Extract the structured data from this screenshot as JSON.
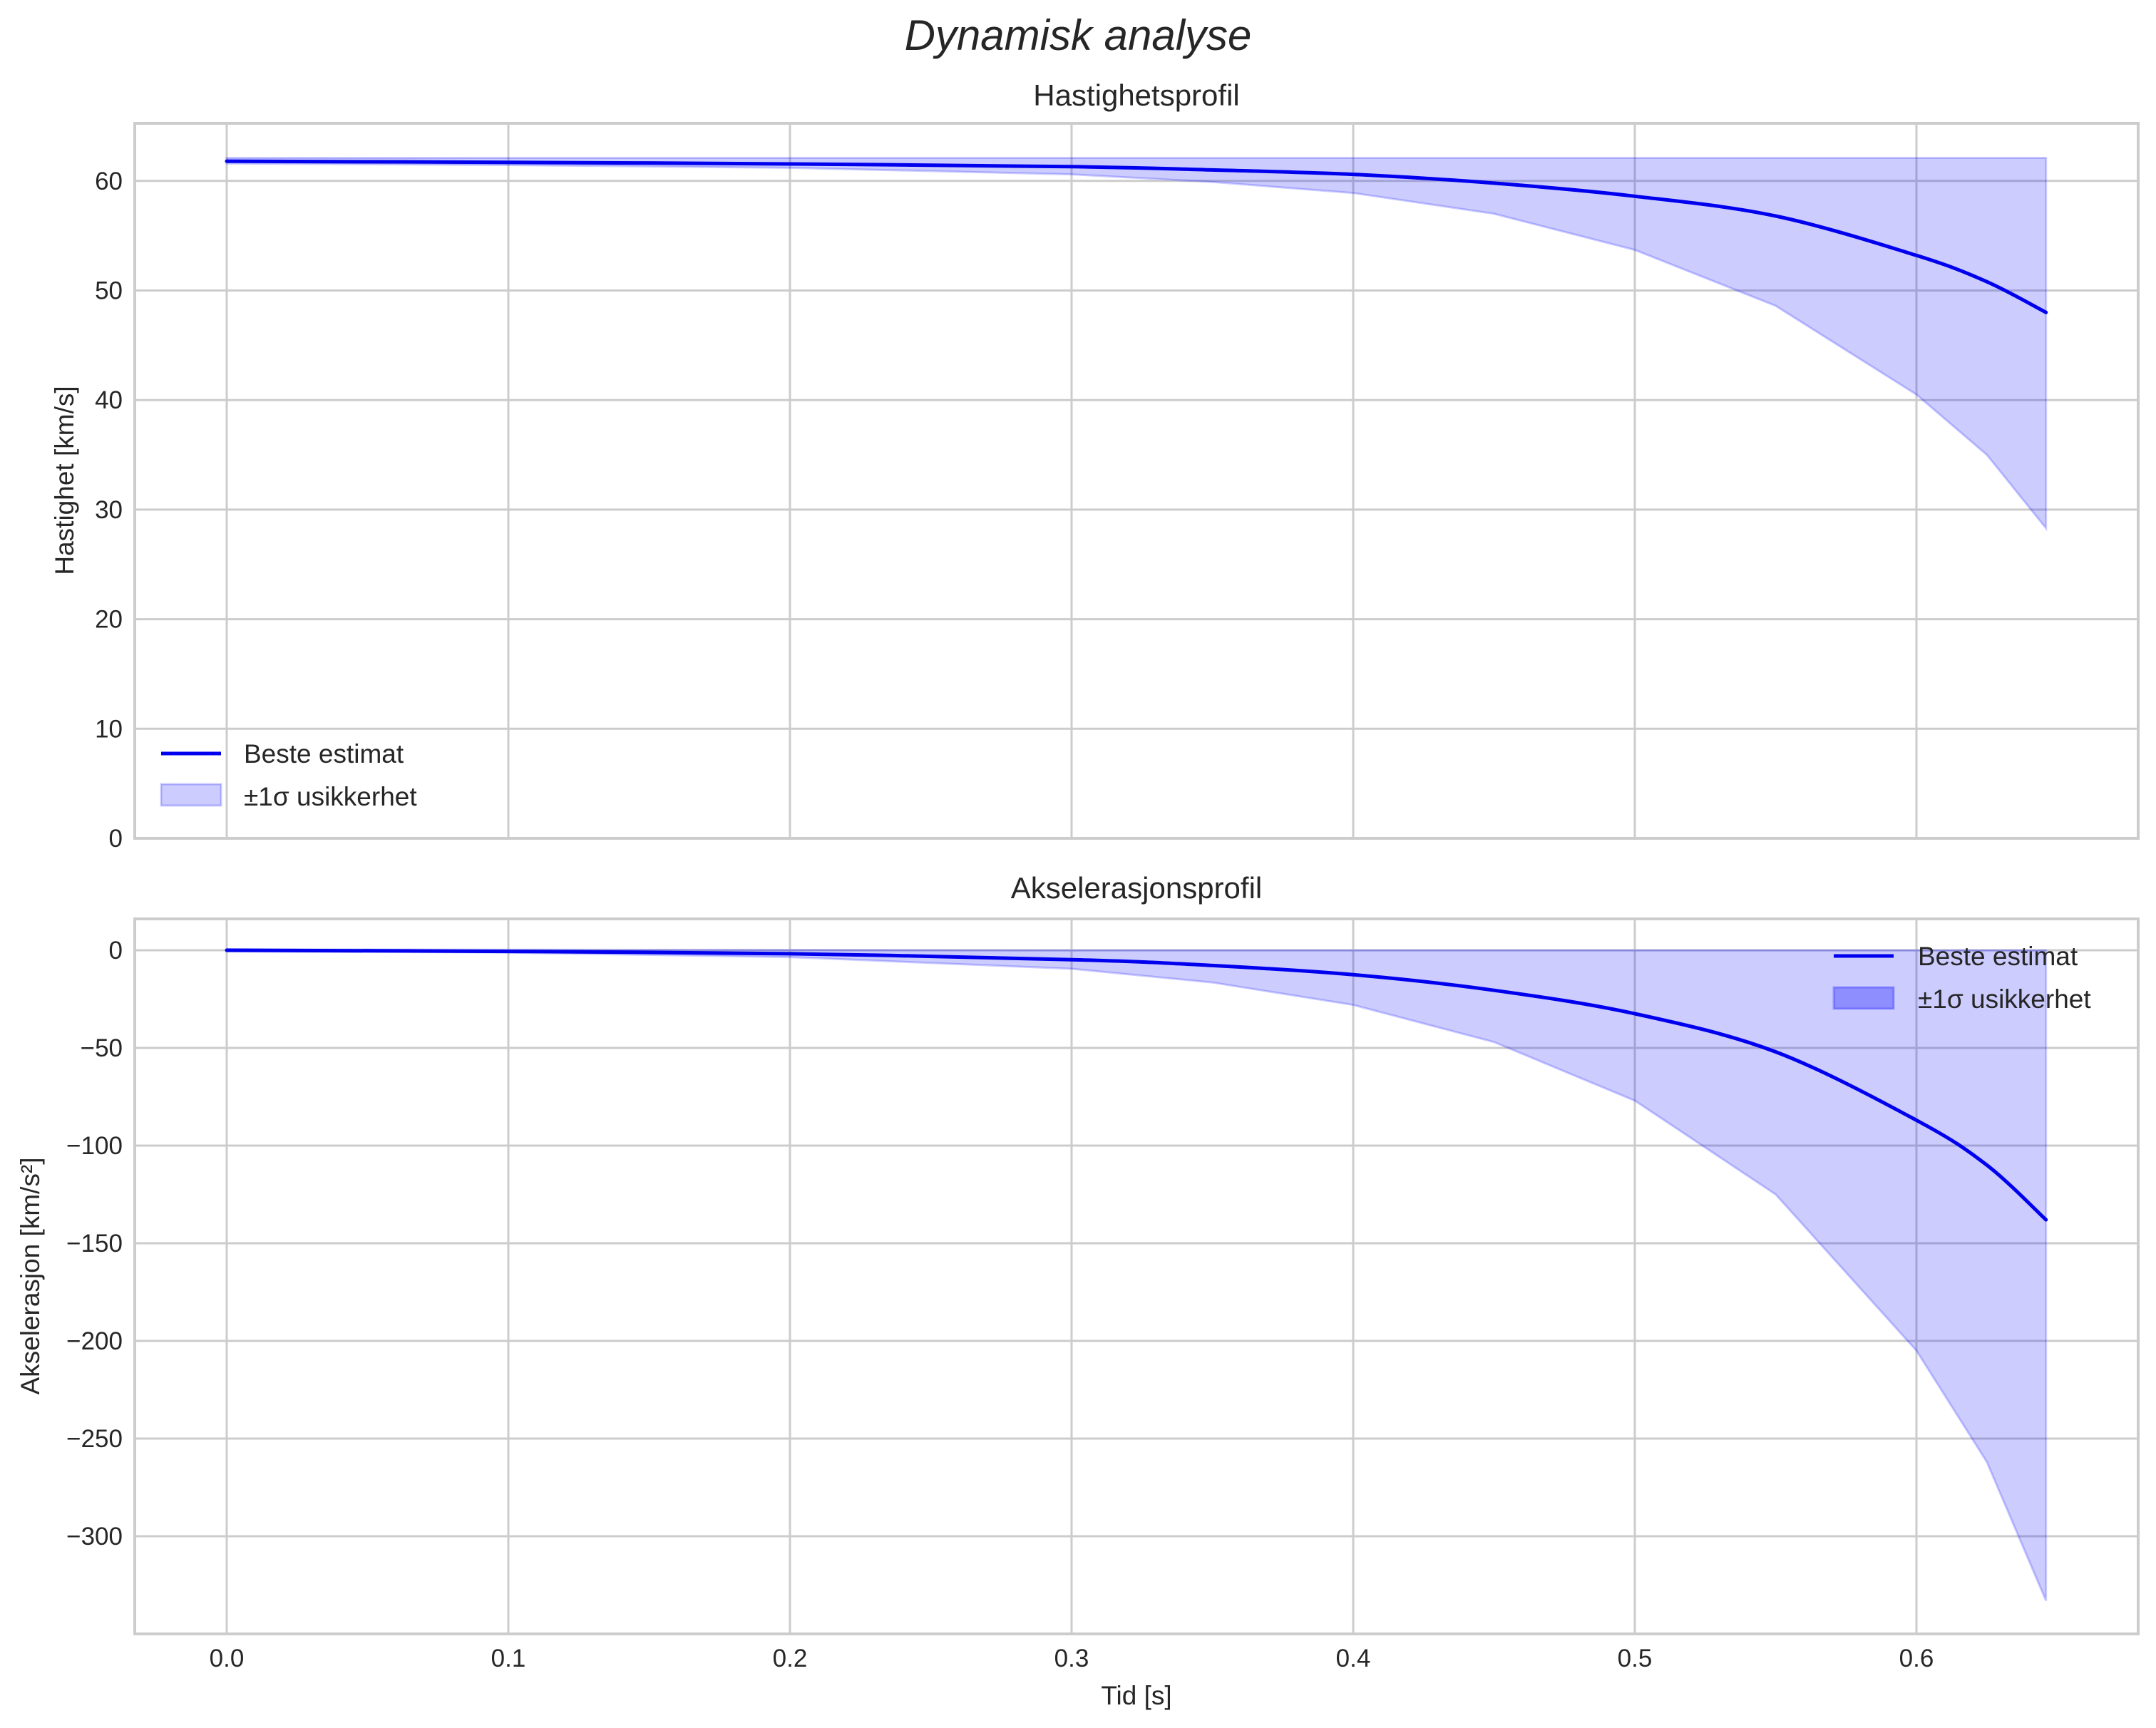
{
  "figure": {
    "suptitle": "Dynamisk analyse",
    "xlabel": "Tid [s]"
  },
  "colors": {
    "line": "#0000ee",
    "band": "#0000ff",
    "grid": "#cccccc",
    "text": "#262626"
  },
  "chart_data": [
    {
      "type": "line",
      "title": "Hastighetsprofil",
      "xlabel": "",
      "ylabel": "Hastighet [km/s]",
      "xlim": [
        -0.033,
        0.678
      ],
      "ylim": [
        0,
        65.4
      ],
      "xticks": [
        "0.0",
        "0.1",
        "0.2",
        "0.3",
        "0.4",
        "0.5",
        "0.6"
      ],
      "yticks": [
        "0",
        "10",
        "20",
        "30",
        "40",
        "50",
        "60"
      ],
      "grid": true,
      "legend_position": "lower left",
      "legend": [
        "Beste estimat",
        "±1σ usikkerhet"
      ],
      "x": [
        0.0,
        0.1,
        0.2,
        0.3,
        0.35,
        0.4,
        0.45,
        0.5,
        0.55,
        0.6,
        0.625,
        0.646
      ],
      "series": [
        {
          "name": "Beste estimat",
          "values": [
            61.8,
            61.7,
            61.55,
            61.3,
            61.0,
            60.6,
            59.8,
            58.6,
            56.8,
            53.2,
            50.8,
            48.0
          ]
        },
        {
          "name": "±1σ lower",
          "values": [
            61.6,
            61.45,
            61.2,
            60.6,
            59.9,
            58.9,
            57.0,
            53.7,
            48.6,
            40.5,
            35.0,
            28.3
          ]
        },
        {
          "name": "±1σ upper",
          "values": [
            62.1,
            62.1,
            62.1,
            62.1,
            62.1,
            62.1,
            62.1,
            62.1,
            62.1,
            62.1,
            62.1,
            62.1
          ]
        }
      ]
    },
    {
      "type": "line",
      "title": "Akselerasjonsprofil",
      "xlabel": "Tid [s]",
      "ylabel": "Akselerasjon [km/s²]",
      "xlim": [
        -0.033,
        0.678
      ],
      "ylim": [
        -350,
        17
      ],
      "xticks": [
        "0.0",
        "0.1",
        "0.2",
        "0.3",
        "0.4",
        "0.5",
        "0.6"
      ],
      "yticks": [
        "0",
        "−50",
        "−100",
        "−150",
        "−200",
        "−250",
        "−300"
      ],
      "grid": true,
      "legend_position": "upper right",
      "legend": [
        "Beste estimat",
        "±1σ usikkerhet"
      ],
      "x": [
        0.0,
        0.1,
        0.2,
        0.3,
        0.35,
        0.4,
        0.45,
        0.5,
        0.55,
        0.6,
        0.625,
        0.646
      ],
      "series": [
        {
          "name": "Beste estimat",
          "values": [
            0.0,
            -0.6,
            -1.8,
            -4.8,
            -7.8,
            -12.5,
            -20.5,
            -32.5,
            -52.0,
            -87.0,
            -110.0,
            -138.0
          ]
        },
        {
          "name": "±1σ lower",
          "values": [
            -0.5,
            -1.2,
            -3.5,
            -9.5,
            -16.5,
            -28.0,
            -47.0,
            -77.0,
            -125.0,
            -205.0,
            -262.0,
            -333.0
          ]
        },
        {
          "name": "±1σ upper",
          "values": [
            0.5,
            0.3,
            0.2,
            0.0,
            0.0,
            0.0,
            0.0,
            0.0,
            0.0,
            0.0,
            0.0,
            0.0
          ]
        }
      ]
    }
  ]
}
